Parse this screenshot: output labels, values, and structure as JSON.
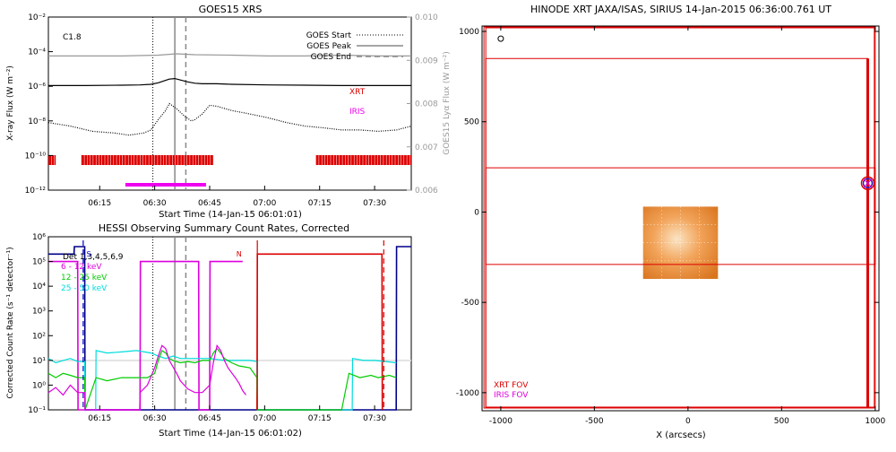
{
  "chart_data": [
    {
      "type": "line",
      "title": "GOES15 XRS",
      "xlabel": "Start Time (14-Jan-15 06:01:01)",
      "ylabel": "X-ray Flux (W m⁻²)",
      "ylabel_right": "GOES15 Lyα Flux (W m⁻²)",
      "x_ticks": [
        "06:15",
        "06:30",
        "06:45",
        "07:00",
        "07:15",
        "07:30"
      ],
      "x_tick_minutes": [
        14,
        29,
        44,
        59,
        74,
        89
      ],
      "xlim_minutes": [
        0,
        99
      ],
      "y_scale": "log",
      "ylim": [
        1e-12,
        0.01
      ],
      "y_ticks": [
        "10⁻²",
        "10⁻⁴",
        "10⁻⁶",
        "10⁻⁸",
        "10⁻¹⁰",
        "10⁻¹²"
      ],
      "y_tick_values": [
        0.01,
        0.0001,
        1e-06,
        1e-08,
        1e-10,
        1e-12
      ],
      "yright_ticks": [
        "0.010",
        "0.009",
        "0.008",
        "0.007",
        "0.006"
      ],
      "yright_values": [
        0.01,
        0.009,
        0.008,
        0.007,
        0.006
      ],
      "yright_lim": [
        0.006,
        0.01
      ],
      "flare_class": "C1.8",
      "legend": [
        {
          "label": "GOES Start",
          "style": "dotted"
        },
        {
          "label": "GOES Peak",
          "style": "solid"
        },
        {
          "label": "GOES End",
          "style": "dashed"
        }
      ],
      "event_lines_minutes": {
        "start": 28.5,
        "peak": 34.5,
        "end": 37.5
      },
      "series": [
        {
          "name": "",
          "color": "#000000",
          "x": [
            0,
            10,
            20,
            25,
            28,
            30,
            32,
            33,
            34.5,
            36,
            38,
            40,
            42,
            44,
            46,
            50,
            60,
            70,
            80,
            90,
            99
          ],
          "y": [
            1.1e-06,
            1.1e-06,
            1.15e-06,
            1.2e-06,
            1.3e-06,
            1.6e-06,
            2.2e-06,
            2.6e-06,
            2.8e-06,
            2.3e-06,
            1.8e-06,
            1.5e-06,
            1.4e-06,
            1.4e-06,
            1.4e-06,
            1.3e-06,
            1.2e-06,
            1.15e-06,
            1.1e-06,
            1.1e-06,
            1.1e-06
          ]
        },
        {
          "name": "",
          "color": "#000000",
          "style": "dotted",
          "x": [
            0,
            6,
            12,
            18,
            22,
            26,
            28,
            30,
            32,
            33,
            35,
            37,
            39,
            40,
            42,
            44,
            46,
            50,
            55,
            60,
            65,
            70,
            75,
            80,
            85,
            90,
            95,
            99
          ],
          "y": [
            8e-09,
            5e-09,
            2.5e-09,
            2e-09,
            1.5e-09,
            2e-09,
            3e-09,
            1.2e-08,
            4e-08,
            1e-07,
            5e-08,
            2e-08,
            1e-08,
            1.2e-08,
            2.5e-08,
            8e-08,
            7e-08,
            4e-08,
            2.5e-08,
            1.5e-08,
            8e-09,
            5e-09,
            4e-09,
            3e-09,
            3e-09,
            2.5e-09,
            3e-09,
            5e-09
          ]
        },
        {
          "name": "",
          "color": "#999999",
          "axis": "right",
          "x": [
            0,
            10,
            20,
            30,
            35,
            40,
            50,
            60,
            70,
            80,
            90,
            99
          ],
          "y": [
            0.0091,
            0.0091,
            0.0091,
            0.00912,
            0.00915,
            0.00913,
            0.00912,
            0.0091,
            0.0091,
            0.00912,
            0.0091,
            0.0091
          ]
        }
      ],
      "coverage_bars": [
        {
          "label": "XRT",
          "color": "#dd0000",
          "minutes": [
            [
              0,
              2
            ],
            [
              9,
              45
            ],
            [
              73,
              99
            ]
          ]
        },
        {
          "label": "IRIS",
          "color": "#ee00ee",
          "minutes": [
            [
              21,
              43
            ]
          ]
        }
      ]
    },
    {
      "type": "line",
      "title": "HESSI Observing Summary Count Rates, Corrected",
      "xlabel": "Start Time (14-Jan-15 06:01:02)",
      "ylabel": "Corrected Count Rate (s⁻¹ detector⁻¹)",
      "x_ticks": [
        "06:15",
        "06:30",
        "06:45",
        "07:00",
        "07:15",
        "07:30"
      ],
      "x_tick_minutes": [
        14,
        29,
        44,
        59,
        74,
        89
      ],
      "xlim_minutes": [
        0,
        99
      ],
      "y_scale": "log",
      "ylim": [
        0.1,
        1000000
      ],
      "y_ticks": [
        "10⁶",
        "10⁵",
        "10⁴",
        "10³",
        "10²",
        "10¹",
        "10⁰",
        "10⁻¹"
      ],
      "y_tick_values": [
        1000000,
        100000,
        10000,
        1000,
        100,
        10,
        1,
        0.1
      ],
      "detectors_label": "Det 1,3,4,5,6,9",
      "annotations": [
        {
          "text": "S",
          "x": 11,
          "color": "#0000cc"
        },
        {
          "text": "N",
          "x": 52,
          "color": "#dd0000"
        }
      ],
      "event_lines_minutes": {
        "start": 28.5,
        "peak": 34.5,
        "end": 37.5
      },
      "series": [
        {
          "name": "6 - 12 keV",
          "color": "#dd00dd",
          "x": [
            0,
            2,
            4,
            6,
            8,
            9.9,
            10,
            24.9,
            25,
            27,
            29,
            30,
            31,
            32,
            33,
            35,
            36,
            38,
            40,
            42,
            44,
            45,
            46,
            47,
            48,
            49,
            51,
            52,
            53,
            53.9
          ],
          "y": [
            0.5,
            0.8,
            0.4,
            1,
            0.5,
            0.5,
            0.1,
            0.1,
            0.5,
            1,
            5,
            15,
            40,
            30,
            10,
            3,
            1.5,
            0.7,
            0.5,
            0.5,
            1,
            8,
            40,
            25,
            10,
            5,
            2,
            1.2,
            0.6,
            0.4
          ]
        },
        {
          "name": "12 - 25 keV",
          "color": "#00cc00",
          "x": [
            0,
            2,
            4,
            6,
            8,
            9.9,
            10,
            13,
            16,
            20,
            24,
            27,
            29,
            30,
            31,
            32,
            33,
            34,
            36,
            38,
            40,
            42,
            44,
            45,
            46,
            47,
            48,
            50,
            52,
            55,
            56.9,
            57,
            80,
            82,
            85,
            88,
            90,
            93,
            94.9
          ],
          "y": [
            3,
            2,
            3,
            2.5,
            2,
            2,
            0.1,
            2,
            1.5,
            2,
            2,
            2,
            3,
            10,
            25,
            20,
            12,
            10,
            8,
            9,
            8,
            10,
            10,
            20,
            30,
            20,
            12,
            8,
            6,
            5,
            2,
            0.1,
            0.1,
            3,
            2,
            2.5,
            2,
            2.5,
            2
          ]
        },
        {
          "name": "25 - 50 keV",
          "color": "#00dddd",
          "x": [
            0,
            2,
            4,
            6,
            8,
            9.9,
            10,
            12.9,
            13,
            16,
            20,
            24,
            28,
            30,
            32,
            34,
            36,
            40,
            44,
            48,
            52,
            55,
            56.9,
            57,
            82.9,
            83,
            86,
            89,
            92,
            94.9
          ],
          "y": [
            12,
            8,
            10,
            12,
            9,
            9,
            0.1,
            0.1,
            25,
            20,
            22,
            25,
            20,
            15,
            12,
            15,
            12,
            12,
            12,
            10,
            10,
            10,
            9,
            0.1,
            0.1,
            12,
            10,
            10,
            9,
            8
          ]
        },
        {
          "name": "",
          "color": "#dddddd",
          "x": [
            0,
            99
          ],
          "y": [
            10,
            10
          ]
        },
        {
          "name": "",
          "color": "#000088",
          "x": [
            0,
            7,
            7.1,
            9.9,
            10,
            94.9,
            95,
            99
          ],
          "y": [
            200000,
            200000,
            400000,
            400000,
            0.1,
            0.1,
            400000,
            400000
          ]
        },
        {
          "name": "",
          "color": "#dd00dd",
          "x": [
            0,
            8,
            8.1,
            25,
            25.1,
            41,
            41.1,
            44,
            44.1,
            53
          ],
          "y": [
            100000,
            100000,
            0.1,
            0.1,
            100000,
            100000,
            0.1,
            0.1,
            100000,
            100000
          ]
        },
        {
          "name": "",
          "color": "#dd0000",
          "x": [
            56.9,
            57,
            91,
            91.1
          ],
          "y": [
            0.1,
            200000,
            200000,
            0.1
          ]
        }
      ],
      "markers": [
        {
          "x": 9.5,
          "color": "#0000cc",
          "style": "dashed"
        },
        {
          "x": 91.5,
          "color": "#dd0000",
          "style": "dashed"
        },
        {
          "x": 57,
          "color": "#dd0000",
          "style": "solid"
        }
      ]
    },
    {
      "type": "scatter",
      "title": "HINODE XRT JAXA/ISAS, SIRIUS 14-Jan-2015 06:36:00.761 UT",
      "xlabel": "X (arcsecs)",
      "ylabel": "",
      "x_ticks": [
        "-1000",
        "-500",
        "0",
        "500",
        "1000"
      ],
      "x_tick_values": [
        -1000,
        -500,
        0,
        500,
        1000
      ],
      "y_ticks": [
        "1000",
        "500",
        "0",
        "-500",
        "-1000"
      ],
      "y_tick_values": [
        1000,
        500,
        0,
        -500,
        -1000
      ],
      "xlim": [
        -1100,
        1020
      ],
      "ylim": [
        -1100,
        1030
      ],
      "legend": [
        {
          "label": "XRT FOV",
          "color": "#dd0000"
        },
        {
          "label": "IRIS FOV",
          "color": "#dd00dd"
        }
      ],
      "fov_boxes": [
        {
          "name": "XRT FOV",
          "color": "#dd0000",
          "x": [
            -1090,
            1000
          ],
          "y": [
            -1085,
            1025
          ]
        },
        {
          "name": "XRT FOV",
          "color": "#dd0000",
          "x": [
            -1080,
            995
          ],
          "y": [
            -1080,
            1020
          ]
        },
        {
          "name": "XRT FOV",
          "color": "#dd0000",
          "x": [
            -1080,
            960
          ],
          "y": [
            -1080,
            850
          ]
        },
        {
          "name": "XRT FOV",
          "color": "#dd0000",
          "x": [
            -1080,
            1000
          ],
          "y": [
            -290,
            245
          ]
        }
      ],
      "image_patch": {
        "x": [
          -240,
          160
        ],
        "y": [
          -370,
          30
        ]
      },
      "targets": [
        {
          "label": "",
          "x": 960,
          "y": 160,
          "color": "#2222cc"
        },
        {
          "label": "",
          "x": -1000,
          "y": 960,
          "color": "#000000"
        }
      ]
    }
  ]
}
